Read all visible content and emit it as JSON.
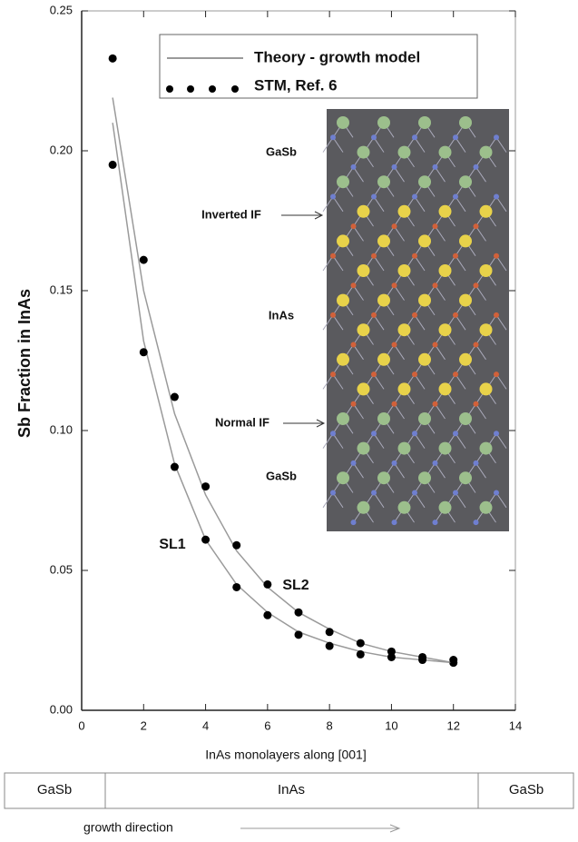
{
  "chart_data": {
    "type": "line",
    "x_label": "InAs monolayers along [001]",
    "y_label": "Sb Fraction in InAs",
    "xlim": [
      0,
      14
    ],
    "ylim": [
      0,
      0.25
    ],
    "xticks": [
      0,
      2,
      4,
      6,
      8,
      10,
      12,
      14
    ],
    "yticks": [
      {
        "value": 0,
        "label": "0.00"
      },
      0.05,
      {
        "value": 0.1,
        "label": "0.10"
      },
      0.15,
      {
        "value": 0.2,
        "label": "0.20"
      },
      0.25
    ],
    "legend": [
      {
        "name": "Theory - growth model",
        "style": "line",
        "color": "#9a9a9a"
      },
      {
        "name": "STM, Ref. 6",
        "style": "dots",
        "color": "#000000"
      }
    ],
    "x": [
      1,
      2,
      3,
      4,
      5,
      6,
      7,
      8,
      9,
      10,
      11,
      12
    ],
    "series": [
      {
        "name": "SL1",
        "theory": [
          0.21,
          0.132,
          0.088,
          0.061,
          0.045,
          0.035,
          0.028,
          0.024,
          0.021,
          0.019,
          0.018,
          0.017
        ],
        "stm": [
          0.195,
          0.128,
          0.087,
          0.061,
          0.044,
          0.034,
          0.027,
          0.023,
          0.02,
          0.019,
          0.018,
          0.017
        ]
      },
      {
        "name": "SL2",
        "theory": [
          0.219,
          0.15,
          0.106,
          0.077,
          0.057,
          0.044,
          0.035,
          0.029,
          0.024,
          0.021,
          0.019,
          0.017
        ],
        "stm": [
          0.233,
          0.161,
          0.112,
          0.08,
          0.059,
          0.045,
          0.035,
          0.028,
          0.024,
          0.021,
          0.019,
          0.018
        ]
      }
    ],
    "inset_labels": [
      "GaSb",
      "Inverted IF",
      "InAs",
      "Normal IF",
      "GaSb"
    ],
    "layers": [
      "GaSb",
      "InAs",
      "GaSb"
    ],
    "direction_label": "growth direction"
  }
}
